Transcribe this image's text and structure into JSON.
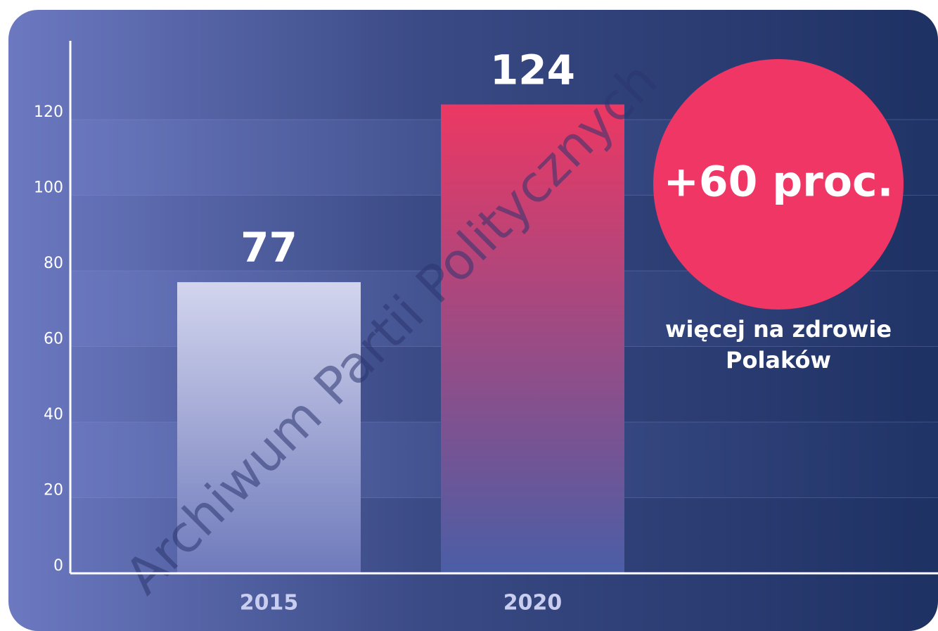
{
  "chart_data": {
    "type": "bar",
    "categories": [
      "2015",
      "2020"
    ],
    "values": [
      77,
      124
    ],
    "colors": [
      [
        "#d3d5ee",
        "#6e7abb"
      ],
      [
        "#ec3863",
        "#4a5ea6"
      ]
    ],
    "ylim": [
      0,
      140
    ],
    "yticks": [
      0,
      20,
      40,
      60,
      80,
      100,
      120
    ],
    "grid": true,
    "annotations": [
      "+60 proc.",
      "więcej na zdrowie",
      "Polaków"
    ],
    "watermark": "Archiwum Partii Politycznych"
  }
}
